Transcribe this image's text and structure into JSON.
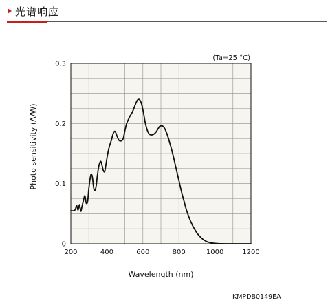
{
  "header": {
    "title": "光谱响应",
    "accent_color": "#c81e1e"
  },
  "chart_data": {
    "type": "line",
    "title": "",
    "xlabel": "Wavelength (nm)",
    "ylabel": "Photo sensitivity (A/W)",
    "condition": "(Ta=25 °C)",
    "xlim": [
      200,
      1200
    ],
    "ylim": [
      0,
      0.3
    ],
    "x_ticks": [
      200,
      400,
      600,
      800,
      1000,
      1200
    ],
    "x_tick_labels": [
      "200",
      "400",
      "600",
      "800",
      "1000",
      "1200"
    ],
    "y_ticks": [
      0,
      0.1,
      0.2,
      0.3
    ],
    "y_tick_labels": [
      "0",
      "0.1",
      "0.2",
      "0.3"
    ],
    "grid": true,
    "plot_background": "#f7f5ef",
    "series": [
      {
        "color": "#111111",
        "x": [
          200,
          215,
          225,
          232,
          240,
          248,
          255,
          262,
          270,
          278,
          285,
          293,
          300,
          308,
          314,
          320,
          326,
          332,
          340,
          348,
          356,
          365,
          372,
          380,
          388,
          395,
          405,
          415,
          425,
          435,
          445,
          455,
          465,
          472,
          478,
          485,
          492,
          500,
          510,
          520,
          530,
          540,
          550,
          560,
          570,
          580,
          590,
          597,
          605,
          612,
          620,
          628,
          636,
          644,
          652,
          660,
          668,
          676,
          684,
          692,
          700,
          708,
          716,
          724,
          732,
          740,
          750,
          760,
          770,
          780,
          790,
          800,
          810,
          820,
          830,
          840,
          850,
          860,
          870,
          880,
          890,
          900,
          920,
          940,
          960,
          980,
          1000,
          1020,
          1040,
          1060,
          1080,
          1100,
          1120,
          1140,
          1160,
          1180,
          1200
        ],
        "y": [
          0.055,
          0.055,
          0.057,
          0.064,
          0.056,
          0.065,
          0.054,
          0.062,
          0.072,
          0.08,
          0.068,
          0.07,
          0.092,
          0.11,
          0.116,
          0.11,
          0.095,
          0.088,
          0.095,
          0.115,
          0.13,
          0.137,
          0.132,
          0.122,
          0.12,
          0.132,
          0.15,
          0.163,
          0.172,
          0.183,
          0.187,
          0.18,
          0.173,
          0.171,
          0.171,
          0.172,
          0.176,
          0.188,
          0.2,
          0.207,
          0.213,
          0.218,
          0.225,
          0.233,
          0.239,
          0.24,
          0.235,
          0.227,
          0.215,
          0.203,
          0.193,
          0.186,
          0.182,
          0.181,
          0.181,
          0.182,
          0.184,
          0.187,
          0.191,
          0.195,
          0.196,
          0.196,
          0.194,
          0.19,
          0.184,
          0.177,
          0.167,
          0.156,
          0.144,
          0.131,
          0.118,
          0.105,
          0.092,
          0.08,
          0.069,
          0.058,
          0.049,
          0.041,
          0.034,
          0.028,
          0.023,
          0.018,
          0.011,
          0.006,
          0.003,
          0.0015,
          0.0007,
          0.0003,
          0.0001,
          0.0,
          0.0,
          0.0,
          0.0,
          0.0,
          0.0,
          0.0,
          0.0
        ]
      }
    ]
  },
  "figure_code": "KMPDB0149EA"
}
